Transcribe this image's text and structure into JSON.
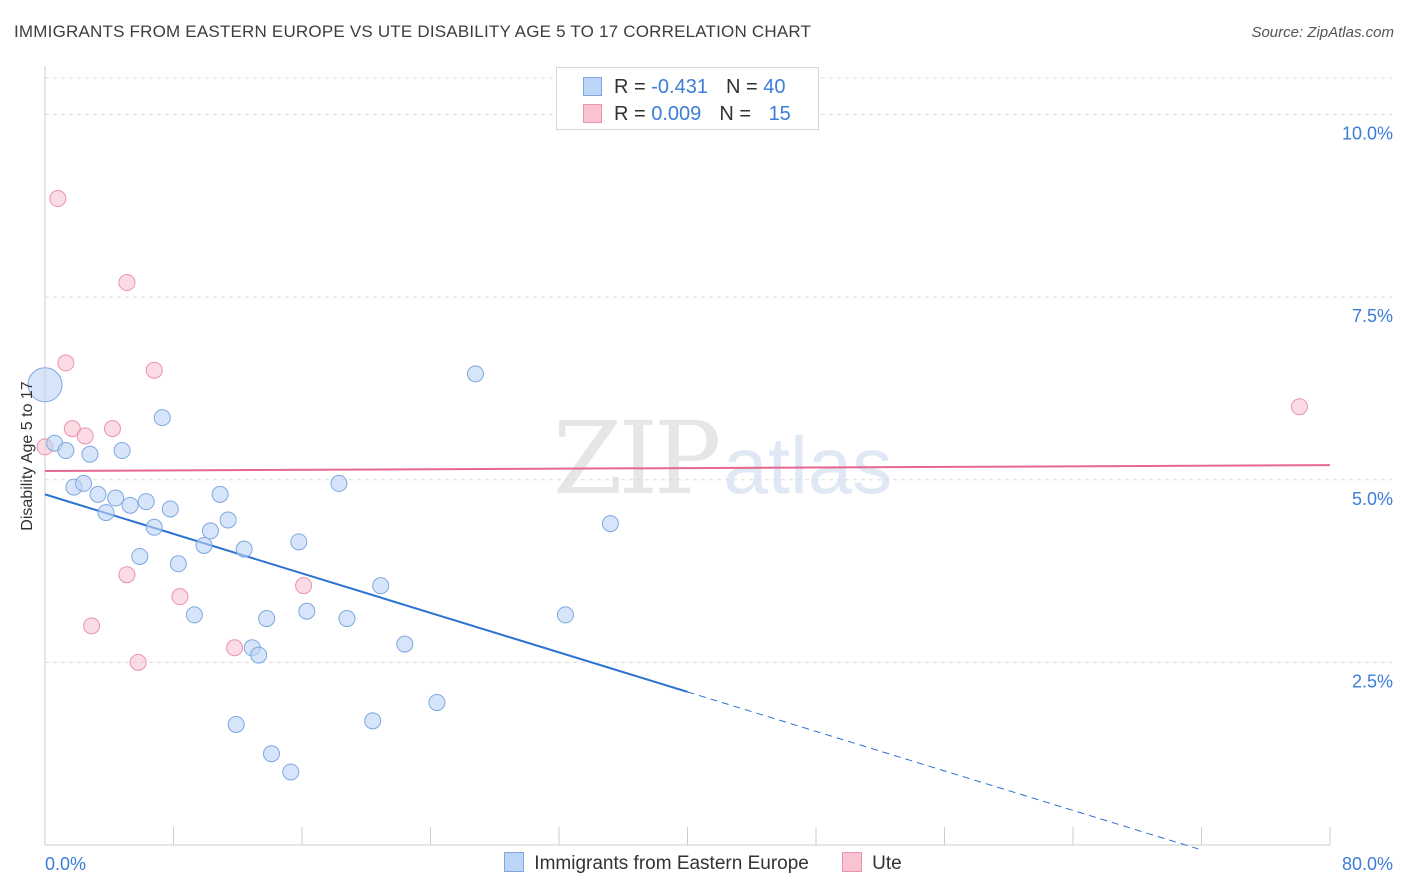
{
  "title": "IMMIGRANTS FROM EASTERN EUROPE VS UTE DISABILITY AGE 5 TO 17 CORRELATION CHART",
  "source": "Source: ZipAtlas.com",
  "watermark": {
    "zip": "ZIP",
    "atlas": "atlas"
  },
  "legend_top": {
    "rows": [
      {
        "r_label": "R = ",
        "r_value": "-0.431",
        "n_label": "N = ",
        "n_value": "40"
      },
      {
        "r_label": "R = ",
        "r_value": "0.009",
        "n_label": "N = ",
        "n_value": "15"
      }
    ]
  },
  "chart_data": {
    "type": "scatter",
    "title": "IMMIGRANTS FROM EASTERN EUROPE VS UTE DISABILITY AGE 5 TO 17 CORRELATION CHART",
    "xlabel": "",
    "ylabel": "Disability Age 5 to 17",
    "xlim": [
      0,
      80
    ],
    "ylim": [
      0,
      10.5
    ],
    "x_tick_labels": [
      "0.0%",
      "80.0%"
    ],
    "y_ticks": [
      2.5,
      5.0,
      7.5,
      10.0
    ],
    "y_tick_labels": [
      "2.5%",
      "5.0%",
      "7.5%",
      "10.0%"
    ],
    "grid": true,
    "legend_position": "bottom-center",
    "colors": {
      "blue_fill": "#bcd4f6",
      "blue_stroke": "#7ea7e0",
      "blue_line": "#2b72d2",
      "pink_fill": "#f9c3d2",
      "pink_stroke": "#eb93ad",
      "pink_line": "#e6678f",
      "tick_label": "#3b7dd8",
      "grid": "#dcdcdc",
      "axis": "#cccccc"
    },
    "series": [
      {
        "name": "Immigrants from Eastern Europe",
        "color": "blue",
        "points": [
          {
            "x": 0.0,
            "y": 6.3,
            "size": "large"
          },
          {
            "x": 0.6,
            "y": 5.5
          },
          {
            "x": 1.3,
            "y": 5.4
          },
          {
            "x": 1.8,
            "y": 4.9
          },
          {
            "x": 2.4,
            "y": 4.95
          },
          {
            "x": 2.8,
            "y": 5.35
          },
          {
            "x": 3.3,
            "y": 4.8
          },
          {
            "x": 3.8,
            "y": 4.55
          },
          {
            "x": 4.4,
            "y": 4.75
          },
          {
            "x": 4.8,
            "y": 5.4
          },
          {
            "x": 5.3,
            "y": 4.65
          },
          {
            "x": 5.9,
            "y": 3.95
          },
          {
            "x": 6.3,
            "y": 4.7
          },
          {
            "x": 6.8,
            "y": 4.35
          },
          {
            "x": 7.3,
            "y": 5.85
          },
          {
            "x": 7.8,
            "y": 4.6
          },
          {
            "x": 8.3,
            "y": 3.85
          },
          {
            "x": 9.3,
            "y": 3.15
          },
          {
            "x": 9.9,
            "y": 4.1
          },
          {
            "x": 10.3,
            "y": 4.3
          },
          {
            "x": 10.9,
            "y": 4.8
          },
          {
            "x": 11.4,
            "y": 4.45
          },
          {
            "x": 11.9,
            "y": 1.65
          },
          {
            "x": 12.4,
            "y": 4.05
          },
          {
            "x": 12.9,
            "y": 2.7
          },
          {
            "x": 13.3,
            "y": 2.6
          },
          {
            "x": 13.8,
            "y": 3.1
          },
          {
            "x": 14.1,
            "y": 1.25
          },
          {
            "x": 15.3,
            "y": 1.0
          },
          {
            "x": 15.8,
            "y": 4.15
          },
          {
            "x": 16.3,
            "y": 3.2
          },
          {
            "x": 18.3,
            "y": 4.95
          },
          {
            "x": 18.8,
            "y": 3.1
          },
          {
            "x": 20.4,
            "y": 1.7
          },
          {
            "x": 20.9,
            "y": 3.55
          },
          {
            "x": 22.4,
            "y": 2.75
          },
          {
            "x": 24.4,
            "y": 1.95
          },
          {
            "x": 26.8,
            "y": 6.45
          },
          {
            "x": 32.4,
            "y": 3.15
          },
          {
            "x": 35.2,
            "y": 4.4
          }
        ],
        "trend": {
          "x0": 0,
          "y0": 4.8,
          "x_solid_end": 40,
          "x_dash_end": 71.8,
          "slope": -0.0676
        }
      },
      {
        "name": "Ute",
        "color": "pink",
        "points": [
          {
            "x": 0.0,
            "y": 5.45
          },
          {
            "x": 0.8,
            "y": 8.85
          },
          {
            "x": 1.3,
            "y": 6.6
          },
          {
            "x": 1.7,
            "y": 5.7
          },
          {
            "x": 2.5,
            "y": 5.6
          },
          {
            "x": 2.9,
            "y": 3.0
          },
          {
            "x": 4.2,
            "y": 5.7
          },
          {
            "x": 5.1,
            "y": 7.7
          },
          {
            "x": 5.1,
            "y": 3.7
          },
          {
            "x": 5.8,
            "y": 2.5
          },
          {
            "x": 6.8,
            "y": 6.5
          },
          {
            "x": 8.4,
            "y": 3.4
          },
          {
            "x": 11.8,
            "y": 2.7
          },
          {
            "x": 16.1,
            "y": 3.55
          },
          {
            "x": 78.1,
            "y": 6.0
          }
        ],
        "trend": {
          "x0": 0,
          "y0": 5.12,
          "x1": 80,
          "y1": 5.2
        }
      }
    ]
  },
  "legend_bottom": [
    {
      "label": "Immigrants from Eastern Europe"
    },
    {
      "label": "Ute"
    }
  ]
}
